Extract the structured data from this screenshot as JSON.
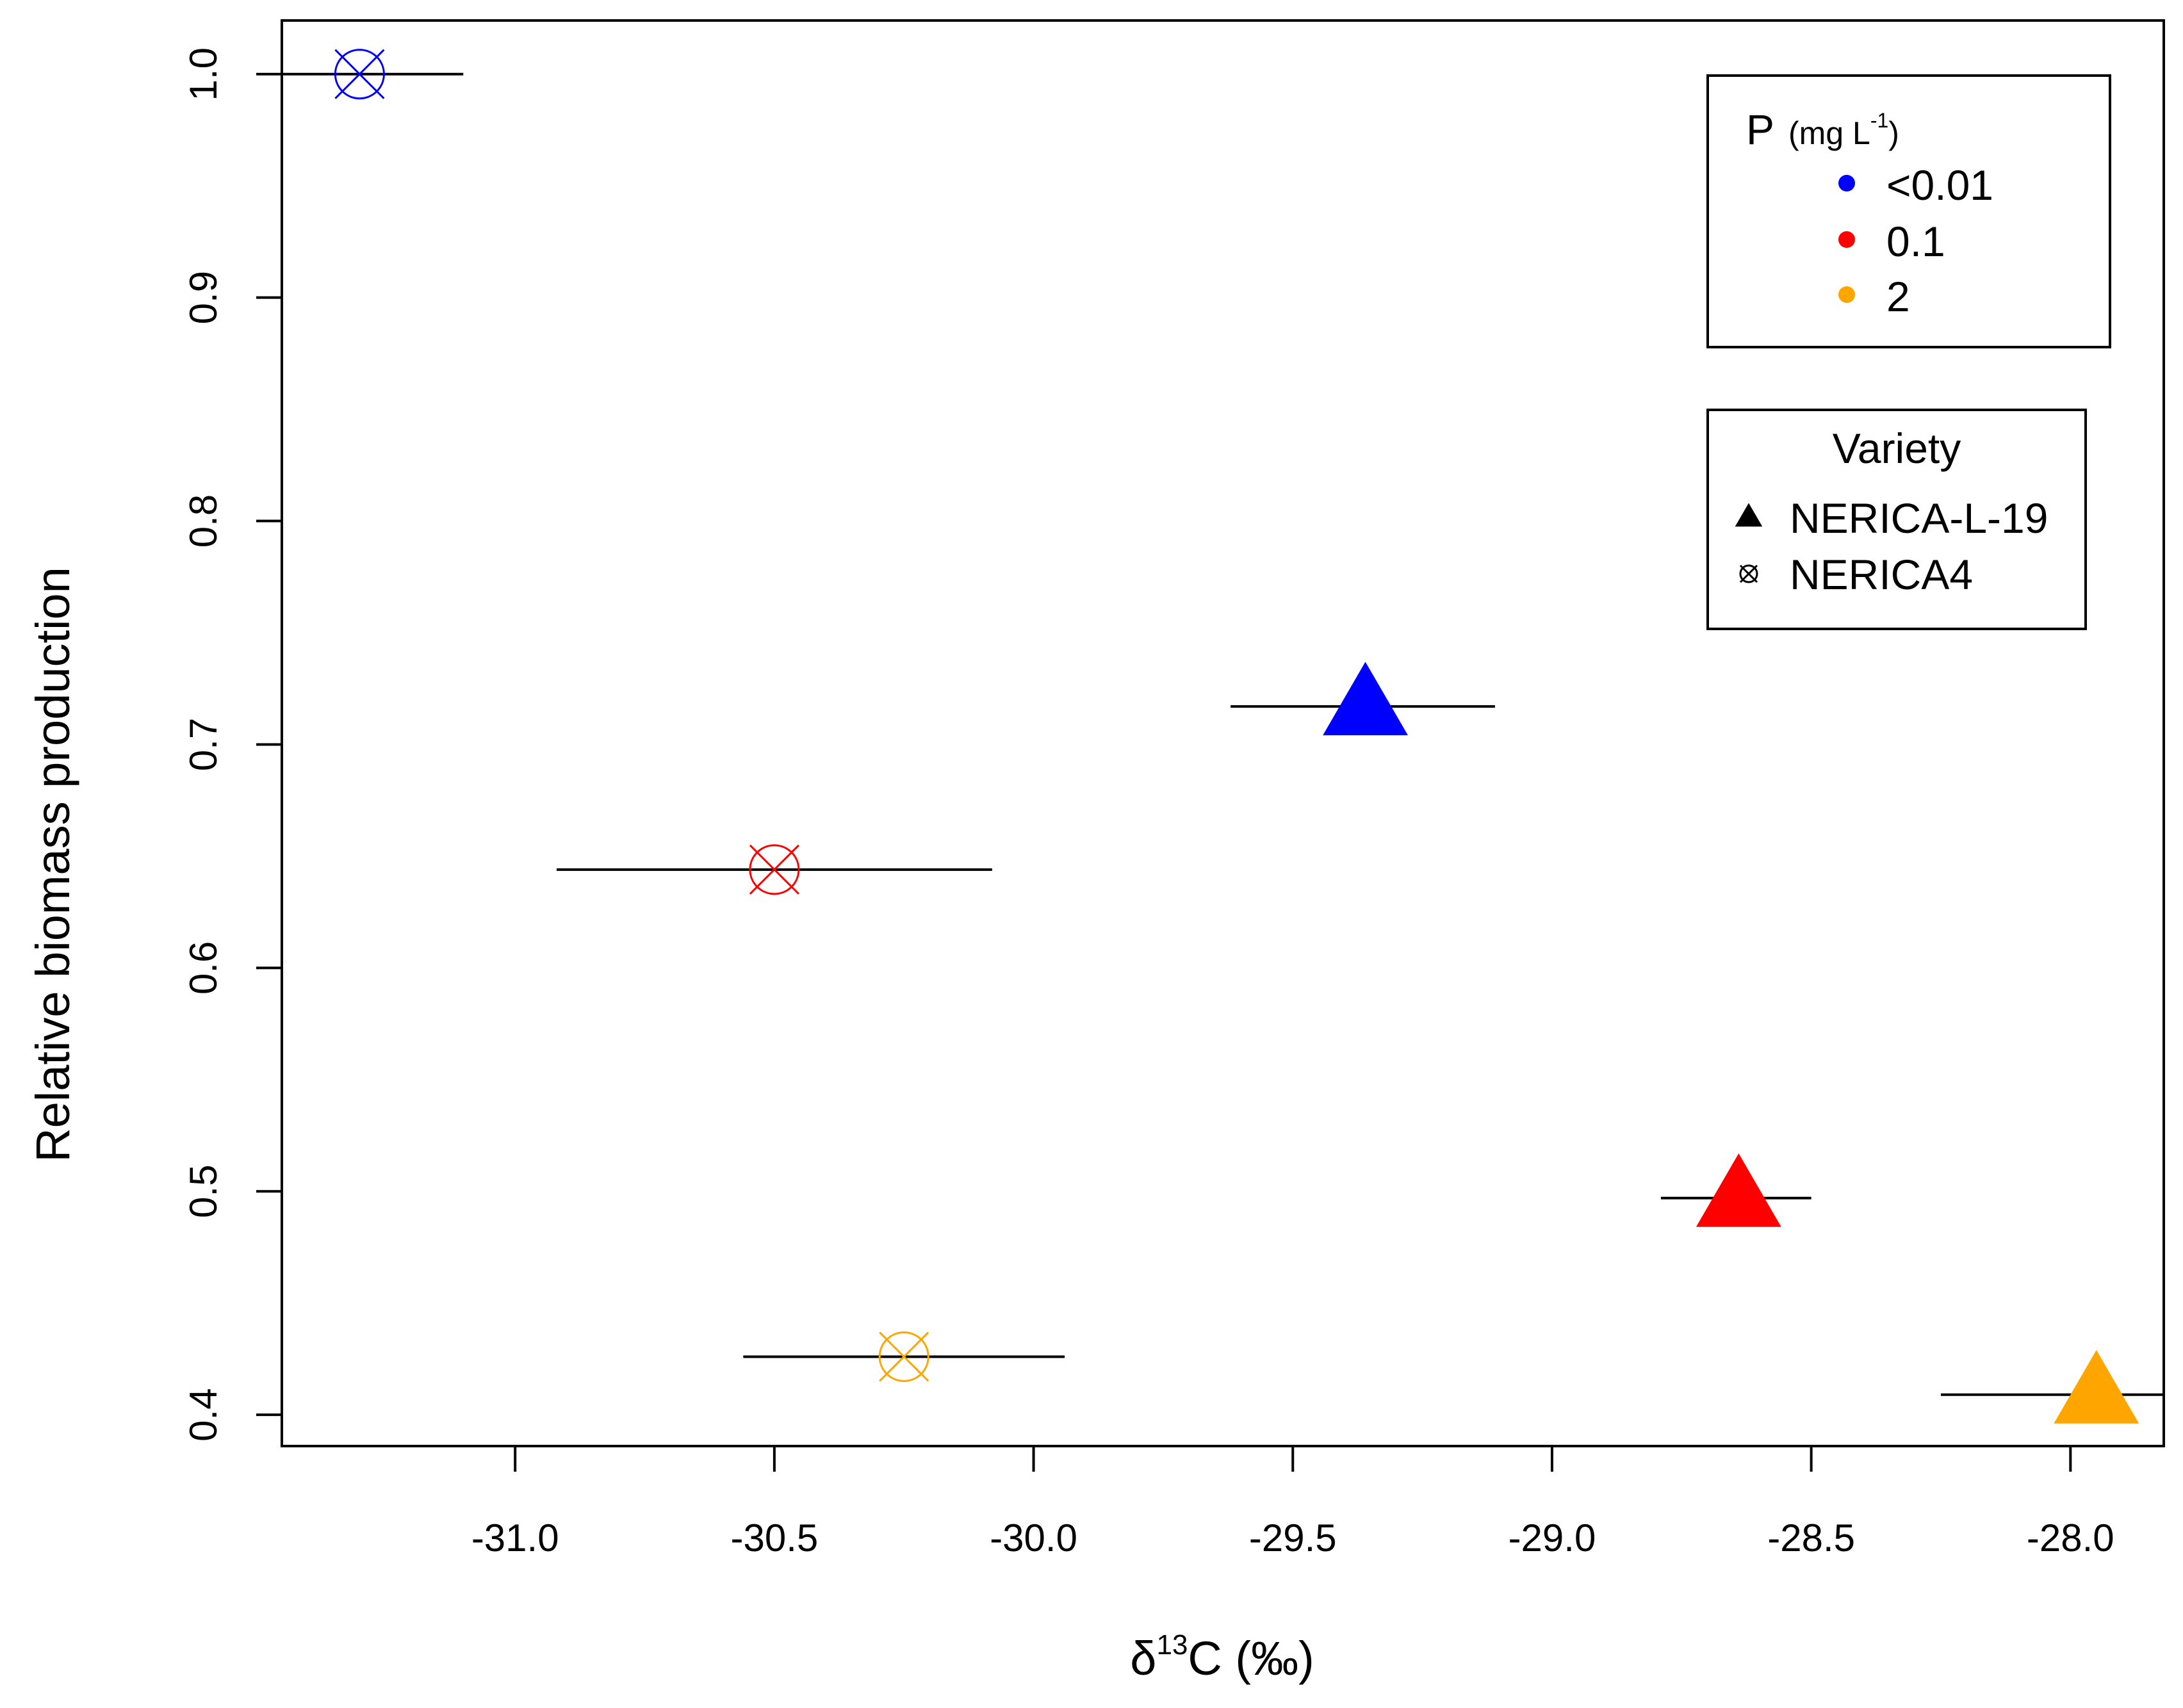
{
  "chart_data": {
    "type": "scatter",
    "title": "",
    "xlabel": "δ",
    "xlabel_sup": "13",
    "xlabel_tail": "C (‰)",
    "ylabel": "Relative biomass production",
    "xlim": [
      -31.45,
      -27.82
    ],
    "ylim": [
      0.386,
      1.024
    ],
    "x_ticks": [
      -31.0,
      -30.5,
      -30.0,
      -29.5,
      -29.0,
      -28.5,
      -28.0
    ],
    "x_tick_labels": [
      "-31.0",
      "-30.5",
      "-30.0",
      "-29.5",
      "-29.0",
      "-28.5",
      "-28.0"
    ],
    "y_ticks": [
      0.4,
      0.5,
      0.6,
      0.7,
      0.8,
      0.9,
      1.0
    ],
    "y_tick_labels": [
      "0.4",
      "0.5",
      "0.6",
      "0.7",
      "0.8",
      "0.9",
      "1.0"
    ],
    "points": [
      {
        "variety": "NERICA4",
        "p_level": "<0.01",
        "x": -31.3,
        "y": 1.0,
        "x_err_low": -31.45,
        "x_err_high": -31.1,
        "color": "#0000ff"
      },
      {
        "variety": "NERICA4",
        "p_level": "0.1",
        "x": -30.5,
        "y": 0.644,
        "x_err_low": -30.92,
        "x_err_high": -30.08,
        "color": "#ff0000"
      },
      {
        "variety": "NERICA4",
        "p_level": "2",
        "x": -30.25,
        "y": 0.426,
        "x_err_low": -30.56,
        "x_err_high": -29.94,
        "color": "#ffa500"
      },
      {
        "variety": "NERICA-L-19",
        "p_level": "<0.01",
        "x": -29.36,
        "y": 0.717,
        "x_err_low": -29.62,
        "x_err_high": -29.11,
        "color": "#0000ff"
      },
      {
        "variety": "NERICA-L-19",
        "p_level": "0.1",
        "x": -28.64,
        "y": 0.497,
        "x_err_low": -28.79,
        "x_err_high": -28.5,
        "color": "#ff0000"
      },
      {
        "variety": "NERICA-L-19",
        "p_level": "2",
        "x": -27.95,
        "y": 0.409,
        "x_err_low": -28.25,
        "x_err_high": -27.82,
        "color": "#ffa500"
      }
    ],
    "legend_p": {
      "title": "P",
      "unit": "(mg L",
      "unit_sup": "-1",
      "unit_close": ")",
      "placement": "top-right",
      "entries": [
        {
          "label": "<0.01",
          "color": "#0000ff"
        },
        {
          "label": "0.1",
          "color": "#ff0000"
        },
        {
          "label": "2",
          "color": "#ffa500"
        }
      ]
    },
    "legend_variety": {
      "title": "Variety",
      "placement": "top-right",
      "entries": [
        {
          "label": "NERICA-L-19",
          "symbol": "triangle"
        },
        {
          "label": "NERICA4",
          "symbol": "circle-x"
        }
      ]
    }
  }
}
